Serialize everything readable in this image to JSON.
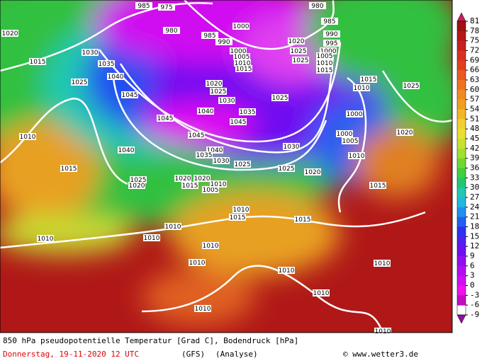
{
  "footer": {
    "title": "850 hPa pseudopotentielle Temperatur [Grad C], Bodendruck [hPa]",
    "date": "Donnerstag, 19-11-2020  12 UTC",
    "model": "(GFS)",
    "run": "(Analyse)",
    "credit": "© www.wetter3.de"
  },
  "colorbar": {
    "ticks": [
      81,
      78,
      75,
      72,
      69,
      66,
      63,
      60,
      57,
      54,
      51,
      48,
      45,
      42,
      39,
      36,
      33,
      30,
      27,
      24,
      21,
      18,
      15,
      12,
      9,
      6,
      3,
      0,
      -3,
      -6,
      -9
    ],
    "colors": [
      "#c8205a",
      "#a01010",
      "#b41818",
      "#c82020",
      "#d83020",
      "#e04020",
      "#e85a20",
      "#f07020",
      "#f08a20",
      "#f0a020",
      "#f0b828",
      "#f0d030",
      "#e8e030",
      "#c8e030",
      "#a0e030",
      "#70d830",
      "#40d040",
      "#20c870",
      "#20c8b0",
      "#20b8e0",
      "#2090f0",
      "#2060f0",
      "#3030f0",
      "#5020f0",
      "#7010f0",
      "#9010f0",
      "#b010f0",
      "#d010f0",
      "#f010f0",
      "#c010c0",
      "#9010a0"
    ]
  },
  "isobar_labels": [
    "1020",
    "1030",
    "1035",
    "1015",
    "1025",
    "1040",
    "1045",
    "1045",
    "1040",
    "1045",
    "1040",
    "1040",
    "1035",
    "1030",
    "1035",
    "1045",
    "1030",
    "1025",
    "1020",
    "1025",
    "1030",
    "1025",
    "1025",
    "1020",
    "1015",
    "1010",
    "1000",
    "1000",
    "1005",
    "1010",
    "1025",
    "1020",
    "1015",
    "1015",
    "1010",
    "1010",
    "1010",
    "1010",
    "1010",
    "1015",
    "1010",
    "1015",
    "1010",
    "1010",
    "1010",
    "1010",
    "1010",
    "1010",
    "1005",
    "1010",
    "1020",
    "1015",
    "1020",
    "1025",
    "1020",
    "1000",
    "990",
    "985",
    "980",
    "975",
    "985",
    "980",
    "985",
    "990",
    "995",
    "1000",
    "1005",
    "1010",
    "1015",
    "1020",
    "1025",
    "1025",
    "1000",
    "1005",
    "1010",
    "1015"
  ]
}
